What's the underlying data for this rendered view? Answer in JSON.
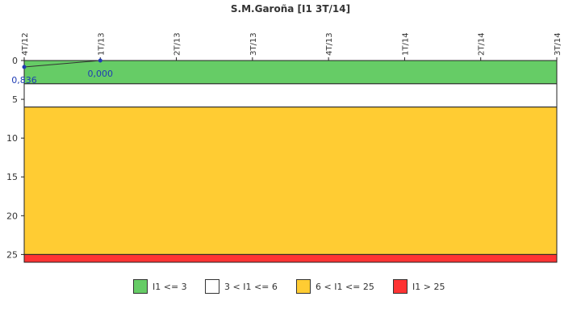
{
  "chart_data": {
    "type": "line",
    "title": "S.M.Garoña [I1 3T/14]",
    "categories": [
      "4T/12",
      "1T/13",
      "2T/13",
      "3T/13",
      "4T/13",
      "1T/14",
      "2T/14",
      "3T/14"
    ],
    "ylim": [
      0,
      26
    ],
    "y_axis_inverted": true,
    "yticks": [
      0,
      5,
      10,
      15,
      20,
      25
    ],
    "grid": false,
    "series": [
      {
        "values": [
          0.836,
          0.0,
          null,
          null,
          null,
          null,
          null,
          null
        ],
        "labels": [
          "0,836",
          "0,000"
        ],
        "color": "#1f3cb4"
      }
    ],
    "bands": [
      {
        "from": 0,
        "to": 3,
        "color": "#66cc66",
        "label": "I1 <= 3"
      },
      {
        "from": 3,
        "to": 6,
        "color": "#ffffff",
        "label": "3 < I1 <= 6"
      },
      {
        "from": 6,
        "to": 25,
        "color": "#ffcc33",
        "label": "6 < I1 <= 25"
      },
      {
        "from": 25,
        "to": 26,
        "color": "#ff3333",
        "label": "I1 > 25"
      }
    ],
    "legend_position": "bottom"
  }
}
